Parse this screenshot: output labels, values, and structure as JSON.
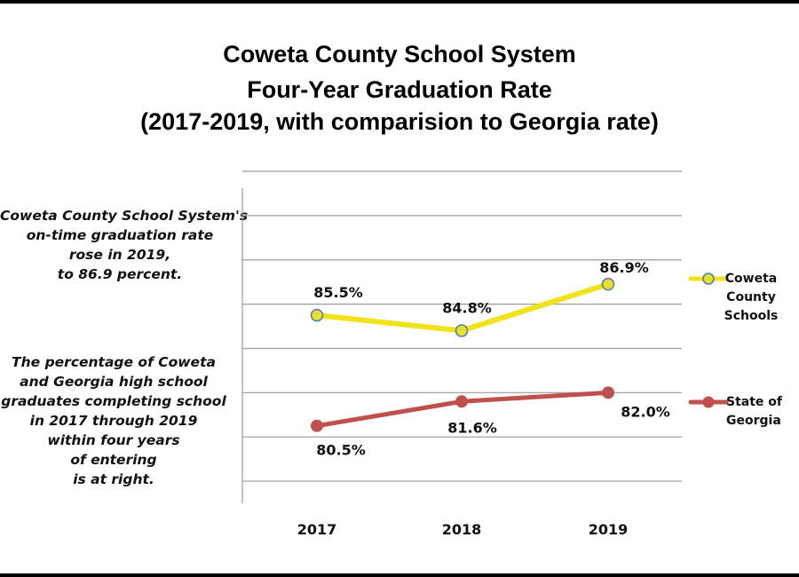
{
  "title_lines": [
    "Coweta County School System",
    "Four-Year Graduation Rate",
    "(2017-2019, with comparision to Georgia rate)"
  ],
  "notes": {
    "top": [
      "Coweta County School System's",
      "on-time graduation rate",
      "rose in 2019,",
      "to 86.9 percent."
    ],
    "bottom": [
      "The percentage of Coweta",
      "and Georgia high school",
      "graduates completing school",
      "in 2017 through 2019",
      "within four years",
      "of entering",
      "is at right."
    ]
  },
  "chart_data": {
    "type": "line",
    "title": "Coweta County School System Four-Year Graduation Rate (2017-2019, with comparision to Georgia rate)",
    "categories": [
      "2017",
      "2018",
      "2019"
    ],
    "ylim": [
      77,
      92
    ],
    "grid": true,
    "legend_position": "right",
    "series": [
      {
        "name": "Coweta County Schools",
        "legend_lines": [
          "Coweta",
          "County",
          "Schools"
        ],
        "values": [
          85.5,
          84.8,
          86.9
        ],
        "labels": [
          "85.5%",
          "84.8%",
          "86.9%"
        ],
        "color": "#f0e31c",
        "marker_fill": "#e6df2c",
        "marker_stroke": "#4a7ab5"
      },
      {
        "name": "State of Georgia",
        "legend_lines": [
          "State of",
          "Georgia"
        ],
        "values": [
          80.5,
          81.6,
          82.0
        ],
        "labels": [
          "80.5%",
          "81.6%",
          "82.0%"
        ],
        "color": "#c0504d",
        "marker_fill": "#c0504d",
        "marker_stroke": "#c0504d"
      }
    ]
  }
}
